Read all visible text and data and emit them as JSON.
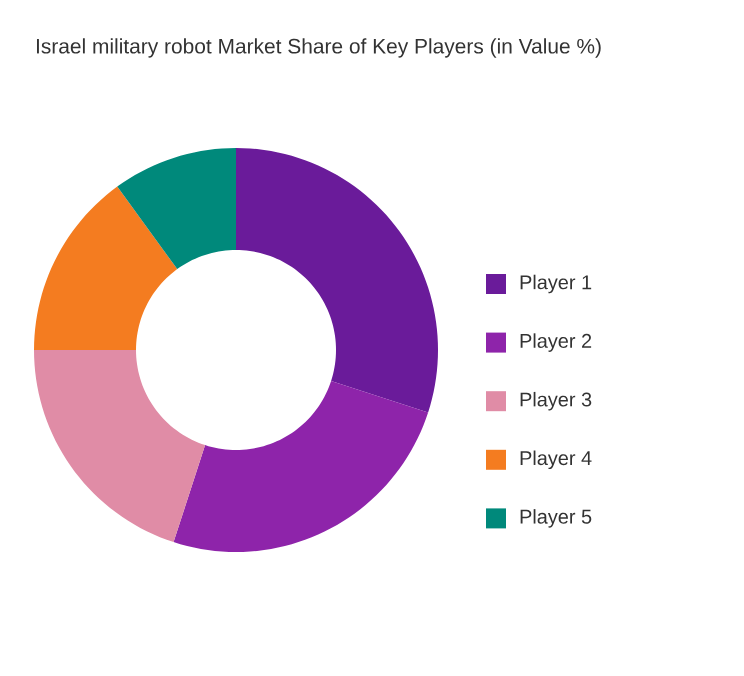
{
  "chart_data": {
    "type": "donut",
    "title": "Israel military robot Market Share of Key Players (in Value %)",
    "categories": [
      "Player 1",
      "Player 2",
      "Player 3",
      "Player 4",
      "Player 5"
    ],
    "values": [
      30,
      25,
      20,
      15,
      10
    ],
    "colors": [
      "#6a1b9a",
      "#8e24aa",
      "#e08ca6",
      "#f47c20",
      "#00897b"
    ],
    "legend": "right"
  }
}
